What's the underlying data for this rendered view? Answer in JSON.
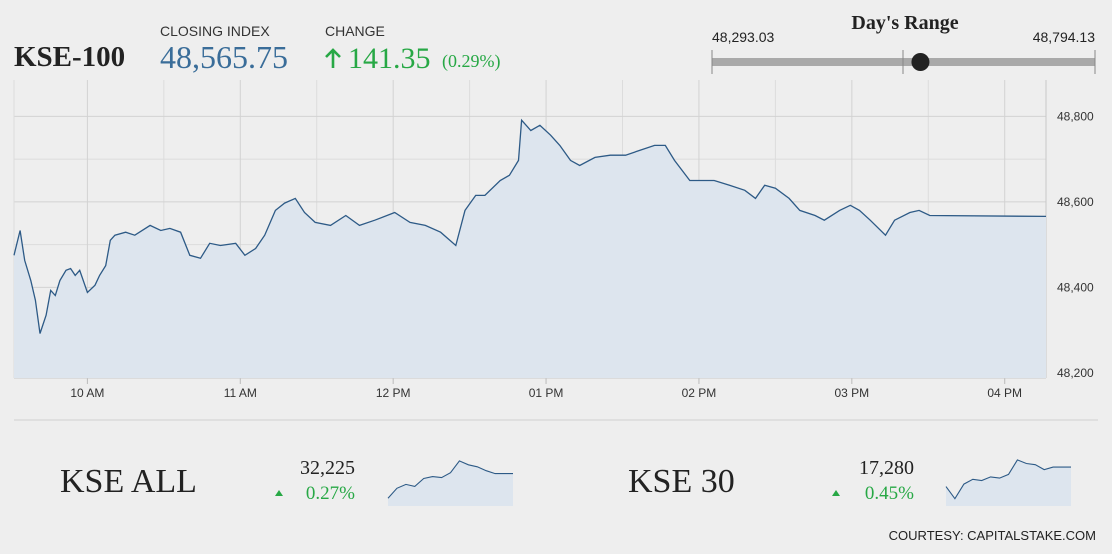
{
  "header": {
    "symbol": "KSE-100",
    "closing_label": "CLOSING INDEX",
    "closing_index": {
      "value": 48565.75,
      "label": "48,565.75"
    },
    "change_label": "CHANGE",
    "change_value": "141.35",
    "change_pct": "(0.29%)"
  },
  "range": {
    "title": "Day's Range",
    "low": {
      "value": 48293.03,
      "label": "48,293.03"
    },
    "high": {
      "value": 48794.13,
      "label": "48,794.13"
    }
  },
  "footer": "COURTESY: CAPITALSTAKE.COM",
  "chart_data": [
    {
      "type": "line",
      "color": "#2d5a86",
      "fill": "#dde5ee",
      "x": [
        9.52,
        9.56,
        9.59,
        9.63,
        9.66,
        9.69,
        9.73,
        9.76,
        9.79,
        9.82,
        9.86,
        9.89,
        9.92,
        9.95,
        10.0,
        10.05,
        10.08,
        10.12,
        10.15,
        10.18,
        10.25,
        10.31,
        10.41,
        10.48,
        10.54,
        10.61,
        10.67,
        10.74,
        10.8,
        10.87,
        10.97,
        11.03,
        11.1,
        11.16,
        11.23,
        11.29,
        11.36,
        11.42,
        11.49,
        11.59,
        11.69,
        11.78,
        11.88,
        12.01,
        12.11,
        12.21,
        12.31,
        12.41,
        12.47,
        12.54,
        12.6,
        12.7,
        12.76,
        12.82,
        12.84,
        12.9,
        12.96,
        13.03,
        13.09,
        13.16,
        13.22,
        13.32,
        13.42,
        13.52,
        13.61,
        13.71,
        13.78,
        13.84,
        13.94,
        14.01,
        14.1,
        14.2,
        14.3,
        14.37,
        14.43,
        14.5,
        14.59,
        14.66,
        14.76,
        14.82,
        14.92,
        14.99,
        15.05,
        15.12,
        15.22,
        15.28,
        15.38,
        15.44,
        15.51,
        16.27
      ],
      "values": [
        48475,
        48533,
        48463,
        48416,
        48370,
        48292,
        48335,
        48393,
        48381,
        48416,
        48440,
        48444,
        48428,
        48440,
        48388,
        48405,
        48428,
        48451,
        48510,
        48522,
        48529,
        48522,
        48545,
        48533,
        48538,
        48529,
        48475,
        48468,
        48503,
        48498,
        48503,
        48475,
        48491,
        48522,
        48580,
        48597,
        48608,
        48575,
        48552,
        48545,
        48568,
        48545,
        48557,
        48575,
        48552,
        48545,
        48529,
        48498,
        48580,
        48615,
        48615,
        48650,
        48662,
        48697,
        48791,
        48767,
        48779,
        48756,
        48732,
        48697,
        48685,
        48704,
        48709,
        48709,
        48720,
        48732,
        48732,
        48697,
        48650,
        48650,
        48650,
        48639,
        48627,
        48608,
        48639,
        48632,
        48608,
        48580,
        48568,
        48557,
        48580,
        48592,
        48580,
        48557,
        48522,
        48557,
        48575,
        48580,
        48568,
        48566
      ],
      "xlim": [
        9.52,
        16.27
      ],
      "xticks": [
        {
          "value": 10,
          "label": "10 AM"
        },
        {
          "value": 11,
          "label": "11 AM"
        },
        {
          "value": 12,
          "label": "12 PM"
        },
        {
          "value": 13,
          "label": "01 PM"
        },
        {
          "value": 14,
          "label": "02 PM"
        },
        {
          "value": 15,
          "label": "03 PM"
        },
        {
          "value": 16,
          "label": "04 PM"
        }
      ],
      "x_minor_ticks": [
        10.5,
        11.5,
        12.5,
        13.5,
        14.5,
        15.5
      ],
      "ylim": [
        48188,
        48885
      ],
      "yticks": [
        {
          "value": 48200,
          "label": "48,200"
        },
        {
          "value": 48400,
          "label": "48,400"
        },
        {
          "value": 48600,
          "label": "48,600"
        },
        {
          "value": 48800,
          "label": "48,800"
        }
      ],
      "y_minor_ticks": [
        48300,
        48500,
        48700
      ],
      "grid": true
    },
    {
      "type": "line",
      "title": "KSE ALL",
      "last": "32,225",
      "change": "0.27%",
      "color": "#2d5a86",
      "fill": "#dde5ee",
      "values": [
        32100,
        32150,
        32170,
        32160,
        32200,
        32210,
        32205,
        32230,
        32290,
        32270,
        32260,
        32240,
        32225,
        32225,
        32225
      ],
      "ylim": [
        32060,
        32320
      ]
    },
    {
      "type": "line",
      "title": "KSE 30",
      "last": "17,280",
      "change": "0.45%",
      "color": "#2d5a86",
      "fill": "#dde5ee",
      "values": [
        17200,
        17150,
        17210,
        17230,
        17225,
        17240,
        17235,
        17250,
        17310,
        17295,
        17290,
        17270,
        17280,
        17280,
        17280
      ],
      "ylim": [
        17120,
        17330
      ]
    }
  ]
}
